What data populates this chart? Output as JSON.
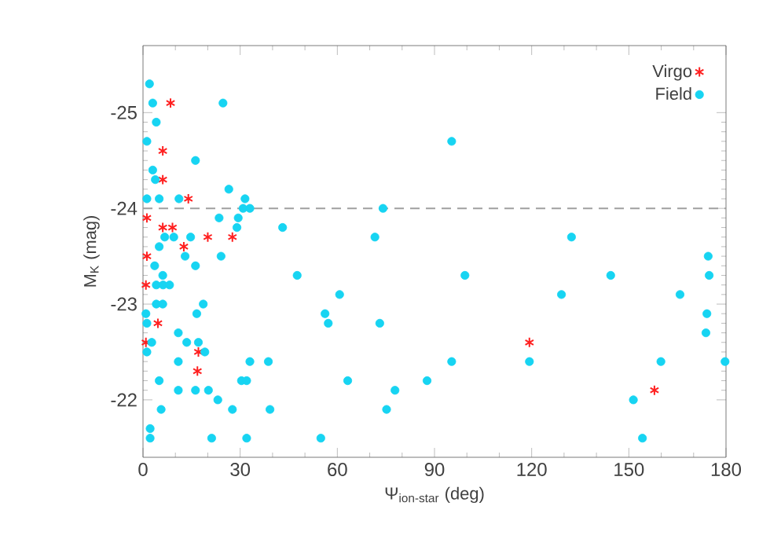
{
  "chart_data": {
    "type": "scatter",
    "xlabel": "Ψ$_{ion-star}$ (deg)",
    "ylabel": "M$_{K}$ (mag)",
    "xlim": [
      0,
      180
    ],
    "xticks": [
      0,
      30,
      60,
      90,
      120,
      150,
      180
    ],
    "ylim": [
      -21.4,
      -25.7
    ],
    "yticks": [
      -25,
      -24,
      -23,
      -22
    ],
    "legend": "top right",
    "grid": false,
    "ref_lines": [
      {
        "axis": "y",
        "value": -24,
        "color": "#a0a0a0",
        "line_style": "dashed"
      }
    ],
    "series": [
      {
        "name": "Virgo",
        "color": "#ff2020",
        "marker": "cross",
        "x": [
          8.5,
          6.1,
          6.1,
          14.0,
          1.2,
          6.1,
          9.1,
          20.0,
          27.6,
          12.6,
          1.2,
          0.9,
          4.6,
          0.9,
          17.1,
          16.8,
          119.3,
          157.9
        ],
        "values": [
          -25.1,
          -24.6,
          -24.3,
          -24.1,
          -23.9,
          -23.8,
          -23.8,
          -23.7,
          -23.7,
          -23.6,
          -23.5,
          -23.2,
          -22.8,
          -22.6,
          -22.5,
          -22.3,
          -22.6,
          -22.1
        ]
      },
      {
        "name": "Field",
        "color": "#17d4f2",
        "marker": "circle",
        "x": [
          2.0,
          3.0,
          4.1,
          1.2,
          16.2,
          24.7,
          3.0,
          3.8,
          26.5,
          1.2,
          5.0,
          11.1,
          31.5,
          30.9,
          33.0,
          23.5,
          29.4,
          29.0,
          43.1,
          6.7,
          9.5,
          14.7,
          5.0,
          13.0,
          24.1,
          71.6,
          95.3,
          74.1,
          132.3,
          174.5,
          174.8,
          99.4,
          144.4,
          129.2,
          165.8,
          73.1,
          174.1,
          173.8,
          95.3,
          119.3,
          159.9,
          179.7,
          87.7,
          77.8,
          75.2,
          151.4,
          154.2,
          3.6,
          16.2,
          47.6,
          6.1,
          4.1,
          6.2,
          8.2,
          60.7,
          0.9,
          4.1,
          6.1,
          18.6,
          16.6,
          56.2,
          57.2,
          1.2,
          10.9,
          13.5,
          17.1,
          2.7,
          1.2,
          19.1,
          10.9,
          33.0,
          38.7,
          5.0,
          30.4,
          32.0,
          63.2,
          10.9,
          16.2,
          20.2,
          23.1,
          5.6,
          27.6,
          39.2,
          2.2,
          2.2,
          21.2,
          32.0,
          54.9
        ],
        "values": [
          -25.3,
          -25.1,
          -24.9,
          -24.7,
          -24.5,
          -25.1,
          -24.4,
          -24.3,
          -24.2,
          -24.1,
          -24.1,
          -24.1,
          -24.1,
          -24.0,
          -24.0,
          -23.9,
          -23.9,
          -23.8,
          -23.8,
          -23.7,
          -23.7,
          -23.7,
          -23.6,
          -23.5,
          -23.5,
          -23.7,
          -24.7,
          -24.0,
          -23.7,
          -23.5,
          -23.3,
          -23.3,
          -23.3,
          -23.1,
          -23.1,
          -22.8,
          -22.9,
          -22.7,
          -22.4,
          -22.4,
          -22.4,
          -22.4,
          -22.2,
          -22.1,
          -21.9,
          -22.0,
          -21.6,
          -23.4,
          -23.4,
          -23.3,
          -23.3,
          -23.2,
          -23.2,
          -23.2,
          -23.1,
          -22.9,
          -23.0,
          -23.0,
          -23.0,
          -22.9,
          -22.9,
          -22.8,
          -22.8,
          -22.7,
          -22.6,
          -22.6,
          -22.6,
          -22.5,
          -22.5,
          -22.4,
          -22.4,
          -22.4,
          -22.2,
          -22.2,
          -22.2,
          -22.2,
          -22.1,
          -22.1,
          -22.1,
          -22.0,
          -21.9,
          -21.9,
          -21.9,
          -21.7,
          -21.6,
          -21.6,
          -21.6,
          -21.6
        ]
      }
    ]
  }
}
